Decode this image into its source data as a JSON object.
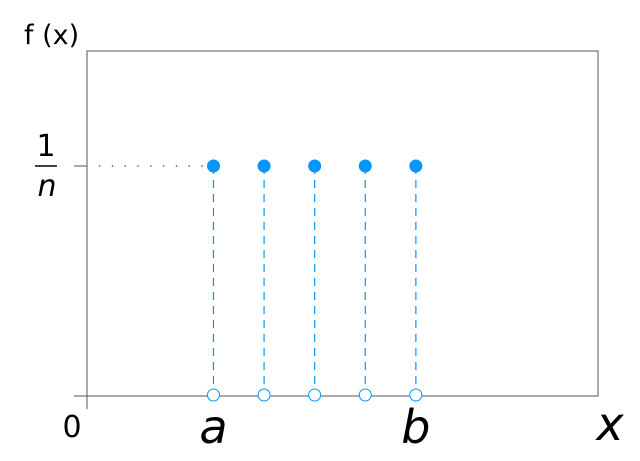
{
  "chart_data": {
    "type": "scatter",
    "title": "",
    "ylabel": "f (x)",
    "xlabel": "x",
    "ylim": [
      0,
      1.5
    ],
    "x_range": [
      -1.5,
      8.6
    ],
    "grid": false,
    "legend": "none",
    "y_tick": {
      "value": 1,
      "numerator": "1",
      "denominator": "n"
    },
    "origin_label": "0",
    "x_labels": [
      {
        "x": 1,
        "text": "a"
      },
      {
        "x": 5,
        "text": "b"
      }
    ],
    "points": [
      {
        "x": 1,
        "y": 1
      },
      {
        "x": 2,
        "y": 1
      },
      {
        "x": 3,
        "y": 1
      },
      {
        "x": 4,
        "y": 1
      },
      {
        "x": 5,
        "y": 1
      }
    ],
    "colors": {
      "point": "#0496ff",
      "stem": "#0496ff",
      "axes": "#555555",
      "guide": "#333333"
    }
  }
}
